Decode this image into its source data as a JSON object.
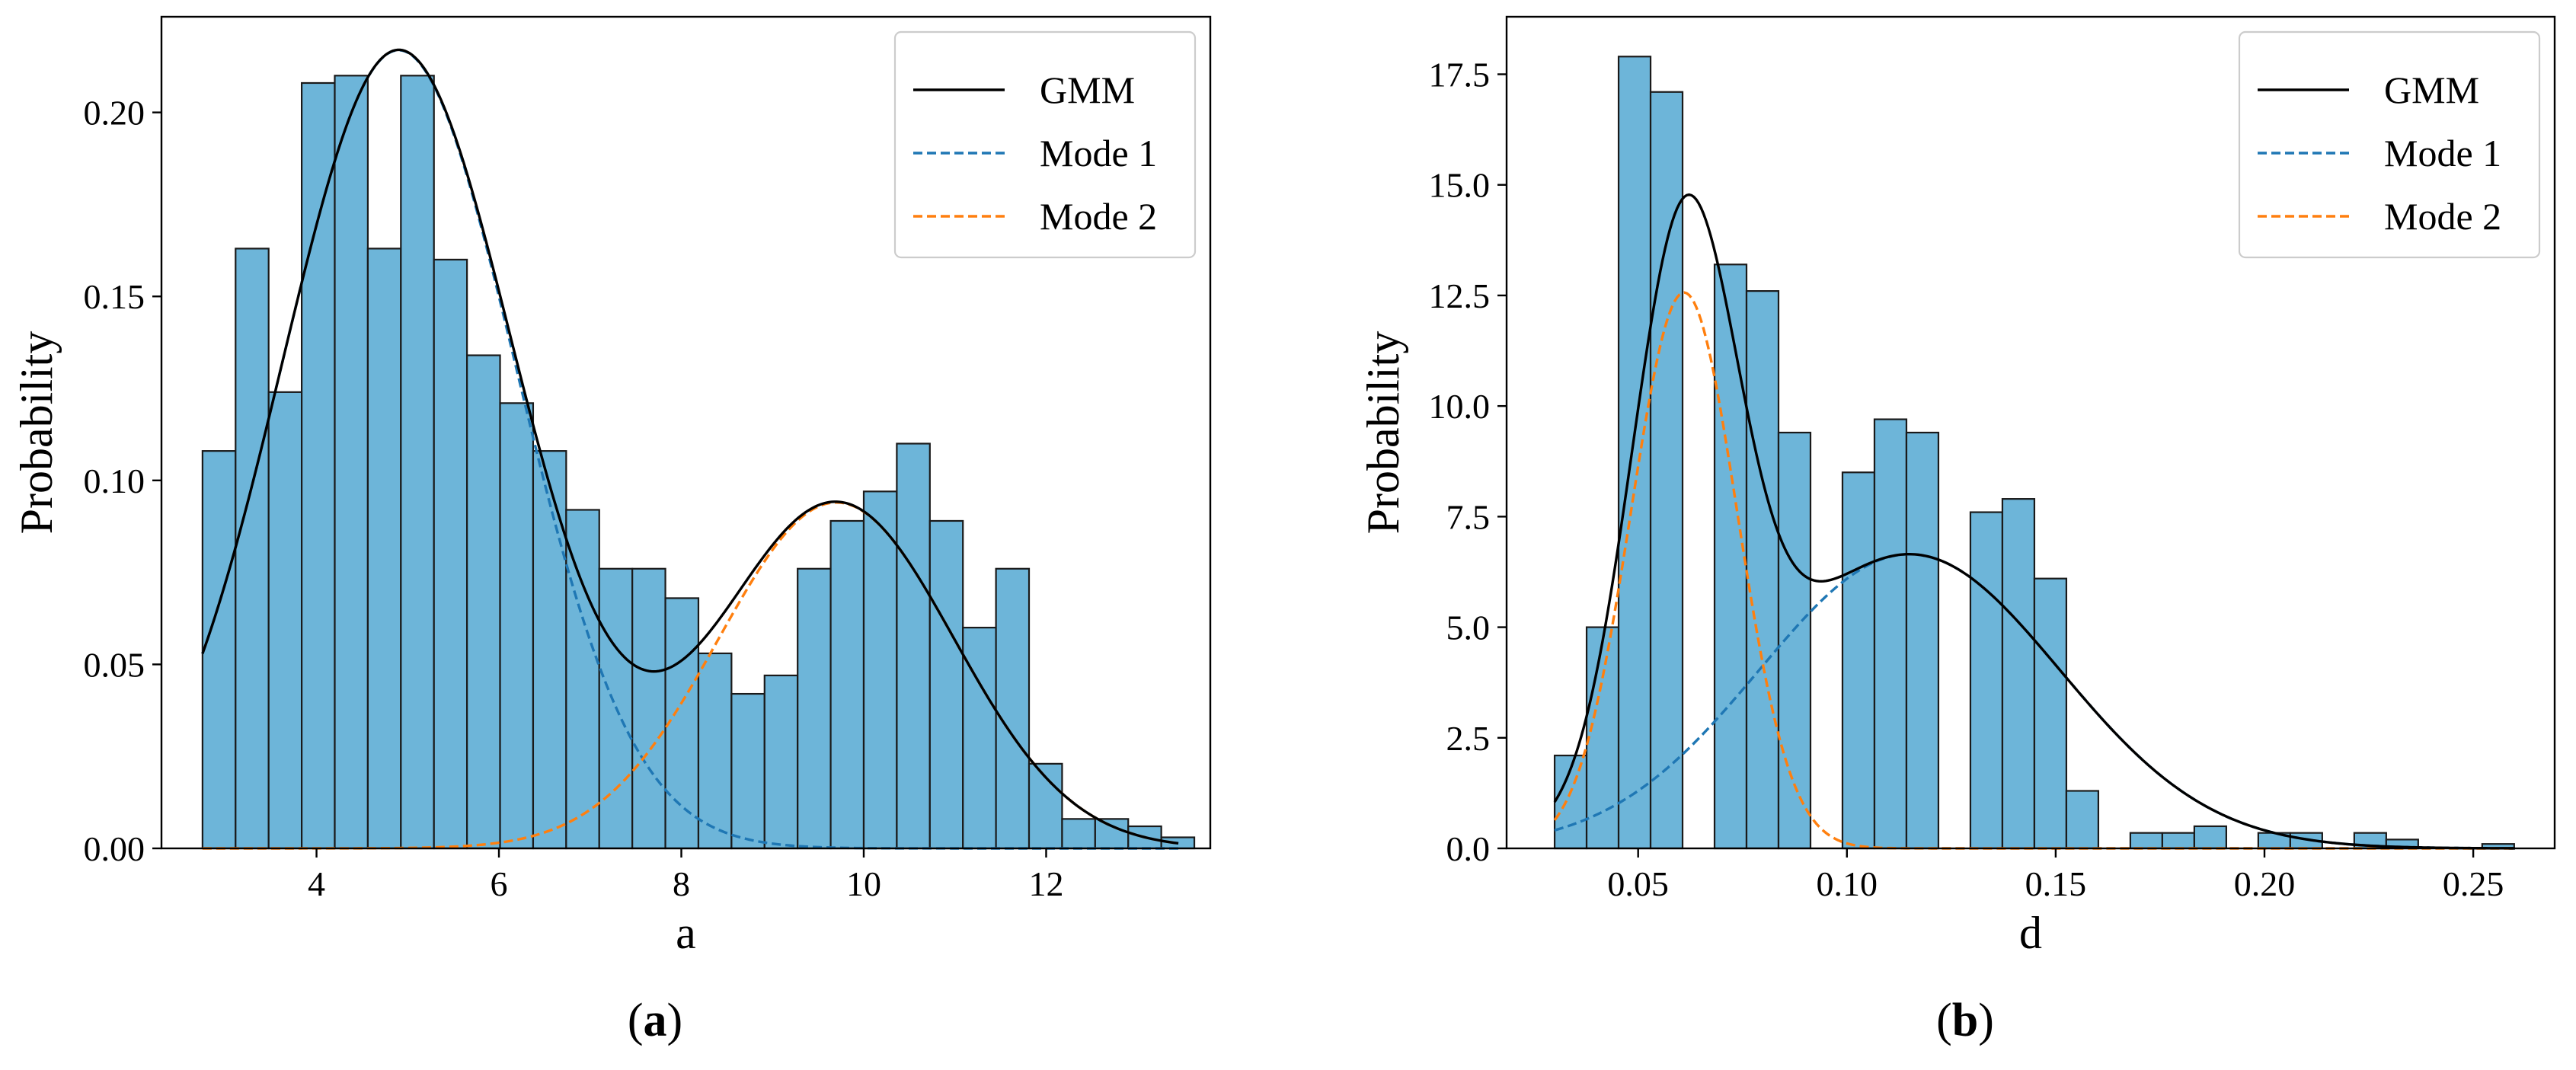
{
  "colors": {
    "bar_fill": "#6db5d9",
    "bar_edge": "#1a1a1a",
    "gmm": "#000000",
    "mode1": "#1f77b4",
    "mode2": "#ff7f0e"
  },
  "captions": {
    "a": "(a)",
    "b": "(b)"
  },
  "chart_data": [
    {
      "type": "bar",
      "panel": "a",
      "title": "",
      "xlabel": "a",
      "ylabel": "Probability",
      "xlim": [
        2.3,
        13.8
      ],
      "ylim": [
        0,
        0.226
      ],
      "xticks": [
        4,
        6,
        8,
        10,
        12
      ],
      "xtick_labels": [
        "4",
        "6",
        "8",
        "10",
        "12"
      ],
      "yticks": [
        0,
        0.05,
        0.1,
        0.15,
        0.2
      ],
      "ytick_labels": [
        "0.00",
        "0.05",
        "0.10",
        "0.15",
        "0.20"
      ],
      "bins": {
        "start": 2.75,
        "width": 0.3625,
        "values": [
          0.108,
          0.163,
          0.124,
          0.208,
          0.21,
          0.163,
          0.21,
          0.16,
          0.134,
          0.121,
          0.108,
          0.092,
          0.076,
          0.076,
          0.068,
          0.053,
          0.042,
          0.047,
          0.076,
          0.089,
          0.097,
          0.11,
          0.089,
          0.06,
          0.076,
          0.023,
          0.008,
          0.008,
          0.006,
          0.003
        ]
      },
      "series": [
        {
          "name": "GMM",
          "style": "solid",
          "components": [
            {
              "w": 0.696,
              "mu": 4.9,
              "sigma": 1.28
            },
            {
              "w": 0.304,
              "mu": 9.7,
              "sigma": 1.29
            }
          ]
        },
        {
          "name": "Mode 1",
          "style": "dashed",
          "components": [
            {
              "w": 0.696,
              "mu": 4.9,
              "sigma": 1.28
            }
          ]
        },
        {
          "name": "Mode 2",
          "style": "dashed",
          "components": [
            {
              "w": 0.304,
              "mu": 9.7,
              "sigma": 1.29
            }
          ]
        }
      ],
      "curve_range": [
        2.75,
        13.45
      ],
      "legend": {
        "position": "top-right",
        "entries": [
          "GMM",
          "Mode 1",
          "Mode 2"
        ]
      }
    },
    {
      "type": "bar",
      "panel": "b",
      "title": "",
      "xlabel": "d",
      "ylabel": "Probability",
      "xlim": [
        0.0185,
        0.2695
      ],
      "ylim": [
        0,
        18.8
      ],
      "xticks": [
        0.05,
        0.1,
        0.15,
        0.2,
        0.25
      ],
      "xtick_labels": [
        "0.05",
        "0.10",
        "0.15",
        "0.20",
        "0.25"
      ],
      "yticks": [
        0,
        2.5,
        5.0,
        7.5,
        10.0,
        12.5,
        15.0,
        17.5
      ],
      "ytick_labels": [
        "0.0",
        "2.5",
        "5.0",
        "7.5",
        "10.0",
        "12.5",
        "15.0",
        "17.5"
      ],
      "bins": {
        "start": 0.03,
        "width": 0.00766,
        "values": [
          2.1,
          5.0,
          17.9,
          17.1,
          0,
          13.2,
          12.6,
          9.4,
          0,
          8.5,
          9.7,
          9.4,
          0,
          7.6,
          7.9,
          6.1,
          1.3,
          0,
          0.35,
          0.35,
          0.5,
          0,
          0.35,
          0.35,
          0,
          0.35,
          0.2,
          0,
          0,
          0.1
        ]
      },
      "series": [
        {
          "name": "GMM",
          "style": "solid",
          "components": [
            {
              "w": 0.6,
              "mu": 0.115,
              "sigma": 0.036
            },
            {
              "w": 0.4,
              "mu": 0.061,
              "sigma": 0.0127
            }
          ]
        },
        {
          "name": "Mode 1",
          "style": "dashed",
          "components": [
            {
              "w": 0.6,
              "mu": 0.115,
              "sigma": 0.036
            }
          ]
        },
        {
          "name": "Mode 2",
          "style": "dashed",
          "components": [
            {
              "w": 0.4,
              "mu": 0.061,
              "sigma": 0.0127
            }
          ]
        }
      ],
      "curve_range": [
        0.03,
        0.26
      ],
      "legend": {
        "position": "top-right",
        "entries": [
          "GMM",
          "Mode 1",
          "Mode 2"
        ]
      }
    }
  ]
}
